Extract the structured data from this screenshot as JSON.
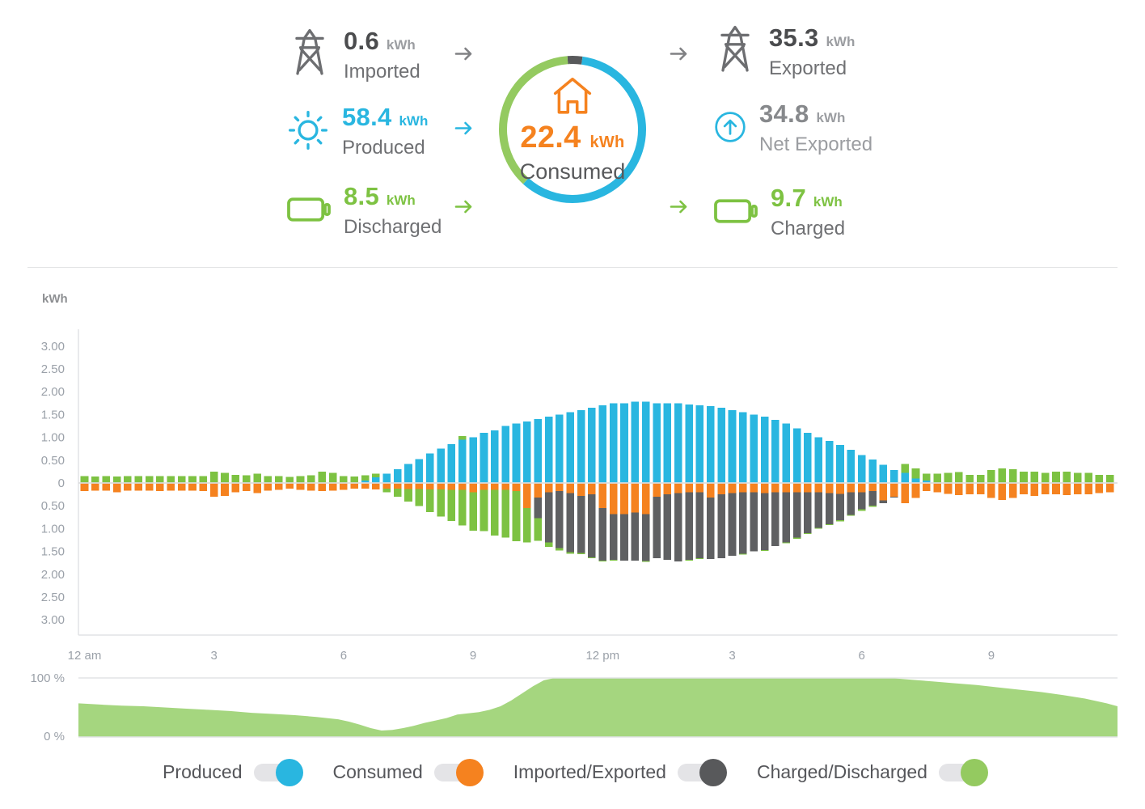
{
  "colors": {
    "produced": "#29b6e0",
    "consumed": "#f5821f",
    "imported_exported": "#5f6062",
    "charged_discharged": "#7dc242",
    "soc_area": "#a5d67f",
    "toggle_track": "#e4e4e7",
    "legend_dark_gray": "#58595b",
    "legend_green": "#94ca60",
    "axis_line": "#e2e3e5",
    "zero_line": "#dcdddf",
    "tick_text": "#9ba1a9",
    "value_dark": "#4b4c4e",
    "label_gray": "#6f7073",
    "muted_gray": "#9b9da1",
    "net_value_gray": "#87898c"
  },
  "summary": {
    "imported": {
      "value": "0.6",
      "unit": "kWh",
      "label": "Imported"
    },
    "produced": {
      "value": "58.4",
      "unit": "kWh",
      "label": "Produced"
    },
    "discharged": {
      "value": "8.5",
      "unit": "kWh",
      "label": "Discharged"
    },
    "consumed": {
      "value": "22.4",
      "unit": "kWh",
      "label": "Consumed"
    },
    "exported": {
      "value": "35.3",
      "unit": "kWh",
      "label": "Exported"
    },
    "net_exported": {
      "value": "34.8",
      "unit": "kWh",
      "label": "Net Exported"
    },
    "charged": {
      "value": "9.7",
      "unit": "kWh",
      "label": "Charged"
    },
    "ring": {
      "start_deg": -4,
      "segments": [
        {
          "name": "from-grid",
          "color": "legend_dark_gray",
          "pct": 3.3
        },
        {
          "name": "from-solar",
          "color": "produced",
          "pct": 59.5
        },
        {
          "name": "from-battery",
          "color": "legend_green",
          "pct": 37.2
        }
      ]
    }
  },
  "chart_data": [
    {
      "type": "bar",
      "title": "Energy by quarter hour",
      "ylabel": "kWh",
      "interval_minutes": 15,
      "start_hour": 0,
      "ylim": [
        -3.5,
        3.5
      ],
      "grid": false,
      "y_ticks": [
        {
          "label": "3.00",
          "value": 3.0
        },
        {
          "label": "2.50",
          "value": 2.5
        },
        {
          "label": "2.00",
          "value": 2.0
        },
        {
          "label": "1.50",
          "value": 1.5
        },
        {
          "label": "1.00",
          "value": 1.0
        },
        {
          "label": "0.50",
          "value": 0.5
        },
        {
          "label": "0",
          "value": 0.0
        },
        {
          "label": "0.50",
          "value": -0.5
        },
        {
          "label": "1.00",
          "value": -1.0
        },
        {
          "label": "1.50",
          "value": -1.5
        },
        {
          "label": "2.00",
          "value": -2.0
        },
        {
          "label": "2.50",
          "value": -2.5
        },
        {
          "label": "3.00",
          "value": -3.0
        }
      ],
      "x_ticks": [
        {
          "label": "12 am",
          "hour": 0
        },
        {
          "label": "3",
          "hour": 3
        },
        {
          "label": "6",
          "hour": 6
        },
        {
          "label": "9",
          "hour": 9
        },
        {
          "label": "12 pm",
          "hour": 12
        },
        {
          "label": "3",
          "hour": 15
        },
        {
          "label": "6",
          "hour": 18
        },
        {
          "label": "9",
          "hour": 21
        }
      ],
      "series": {
        "produced": {
          "sign": 1,
          "color": "produced",
          "values": [
            0,
            0,
            0,
            0,
            0,
            0,
            0,
            0,
            0,
            0,
            0,
            0,
            0,
            0,
            0,
            0,
            0,
            0,
            0,
            0,
            0,
            0,
            0,
            0,
            0,
            0,
            0.05,
            0.12,
            0.2,
            0.3,
            0.42,
            0.52,
            0.65,
            0.75,
            0.85,
            0.95,
            1.0,
            1.1,
            1.15,
            1.25,
            1.3,
            1.35,
            1.4,
            1.45,
            1.5,
            1.55,
            1.6,
            1.65,
            1.7,
            1.75,
            1.75,
            1.78,
            1.78,
            1.75,
            1.75,
            1.75,
            1.72,
            1.7,
            1.68,
            1.65,
            1.6,
            1.55,
            1.5,
            1.45,
            1.38,
            1.3,
            1.2,
            1.1,
            1.0,
            0.92,
            0.83,
            0.73,
            0.61,
            0.51,
            0.4,
            0.28,
            0.22,
            0.1,
            0.05,
            0,
            0,
            0,
            0,
            0,
            0,
            0,
            0,
            0,
            0,
            0,
            0,
            0,
            0,
            0,
            0,
            0
          ]
        },
        "discharged": {
          "sign": 1,
          "color": "charged_discharged",
          "values": [
            0.15,
            0.14,
            0.15,
            0.14,
            0.15,
            0.15,
            0.15,
            0.15,
            0.15,
            0.15,
            0.15,
            0.15,
            0.25,
            0.22,
            0.18,
            0.17,
            0.2,
            0.15,
            0.15,
            0.13,
            0.15,
            0.17,
            0.25,
            0.22,
            0.15,
            0.14,
            0.12,
            0.08,
            0,
            0,
            0,
            0,
            0,
            0,
            0,
            0.08,
            0,
            0,
            0,
            0,
            0,
            0,
            0,
            0,
            0,
            0,
            0,
            0,
            0,
            0,
            0,
            0,
            0,
            0,
            0,
            0,
            0,
            0,
            0,
            0,
            0,
            0,
            0,
            0,
            0,
            0,
            0,
            0,
            0,
            0,
            0,
            0,
            0,
            0,
            0,
            0,
            0.2,
            0.22,
            0.15,
            0.2,
            0.22,
            0.24,
            0.18,
            0.18,
            0.28,
            0.32,
            0.3,
            0.25,
            0.25,
            0.22,
            0.25,
            0.25,
            0.22,
            0.22,
            0.18,
            0.18
          ]
        },
        "consumed": {
          "sign": -1,
          "color": "consumed",
          "values": [
            0.18,
            0.17,
            0.17,
            0.2,
            0.17,
            0.17,
            0.17,
            0.18,
            0.17,
            0.17,
            0.17,
            0.18,
            0.3,
            0.28,
            0.2,
            0.18,
            0.22,
            0.17,
            0.15,
            0.12,
            0.15,
            0.17,
            0.18,
            0.17,
            0.15,
            0.12,
            0.12,
            0.14,
            0.12,
            0.12,
            0.13,
            0.13,
            0.14,
            0.14,
            0.15,
            0.15,
            0.2,
            0.15,
            0.15,
            0.15,
            0.18,
            0.55,
            0.32,
            0.2,
            0.18,
            0.22,
            0.28,
            0.25,
            0.55,
            0.68,
            0.68,
            0.65,
            0.68,
            0.3,
            0.25,
            0.22,
            0.2,
            0.2,
            0.32,
            0.25,
            0.22,
            0.2,
            0.2,
            0.22,
            0.2,
            0.2,
            0.2,
            0.2,
            0.2,
            0.22,
            0.24,
            0.2,
            0.2,
            0.18,
            0.38,
            0.3,
            0.44,
            0.33,
            0.18,
            0.2,
            0.24,
            0.27,
            0.25,
            0.25,
            0.33,
            0.37,
            0.33,
            0.25,
            0.28,
            0.25,
            0.25,
            0.27,
            0.25,
            0.25,
            0.22,
            0.2
          ]
        },
        "exported": {
          "sign": -1,
          "color": "imported_exported",
          "values": [
            0,
            0,
            0,
            0,
            0,
            0,
            0,
            0,
            0,
            0,
            0,
            0,
            0,
            0,
            0,
            0,
            0,
            0,
            0,
            0,
            0,
            0,
            0,
            0,
            0,
            0,
            0,
            0,
            0,
            0,
            0,
            0,
            0,
            0,
            0,
            0,
            0,
            0,
            0,
            0,
            0,
            0,
            0.45,
            1.1,
            1.25,
            1.3,
            1.25,
            1.38,
            1.15,
            1.0,
            1.02,
            1.05,
            1.03,
            1.35,
            1.43,
            1.5,
            1.48,
            1.45,
            1.35,
            1.4,
            1.38,
            1.35,
            1.3,
            1.25,
            1.18,
            1.1,
            1.0,
            0.9,
            0.78,
            0.68,
            0.58,
            0.5,
            0.38,
            0.32,
            0.06,
            0.02,
            0,
            0,
            0,
            0,
            0,
            0,
            0,
            0,
            0,
            0,
            0,
            0,
            0,
            0,
            0,
            0,
            0,
            0,
            0,
            0
          ]
        },
        "charged": {
          "sign": -1,
          "color": "charged_discharged",
          "values": [
            0,
            0,
            0,
            0,
            0,
            0,
            0,
            0,
            0,
            0,
            0,
            0,
            0,
            0,
            0,
            0,
            0,
            0,
            0,
            0,
            0,
            0,
            0,
            0,
            0,
            0,
            0,
            0,
            0.08,
            0.18,
            0.28,
            0.38,
            0.5,
            0.6,
            0.68,
            0.78,
            0.85,
            0.9,
            1.0,
            1.05,
            1.1,
            0.75,
            0.5,
            0.1,
            0.05,
            0.03,
            0.03,
            0.02,
            0.02,
            0.02,
            0,
            0,
            0.02,
            0,
            0,
            0,
            0.02,
            0.02,
            0,
            0,
            0,
            0.02,
            0,
            0.02,
            0,
            0.02,
            0.02,
            0.02,
            0.02,
            0.02,
            0.02,
            0.02,
            0.03,
            0.02,
            0,
            0,
            0,
            0,
            0,
            0,
            0,
            0,
            0,
            0,
            0,
            0,
            0,
            0,
            0,
            0,
            0,
            0,
            0,
            0,
            0,
            0
          ]
        }
      }
    },
    {
      "type": "area",
      "title": "Battery state of charge",
      "y_labels": [
        "100 %",
        "0 %"
      ],
      "ylim": [
        0,
        100
      ],
      "unit": "%",
      "points": [
        [
          0,
          57
        ],
        [
          0.5,
          55
        ],
        [
          1,
          53
        ],
        [
          1.5,
          52
        ],
        [
          2,
          50
        ],
        [
          2.5,
          48
        ],
        [
          3,
          46
        ],
        [
          3.5,
          44
        ],
        [
          4,
          41
        ],
        [
          4.5,
          39
        ],
        [
          5,
          37
        ],
        [
          5.5,
          34
        ],
        [
          6,
          30
        ],
        [
          6.25,
          26
        ],
        [
          6.5,
          21
        ],
        [
          6.75,
          15
        ],
        [
          7,
          11
        ],
        [
          7.25,
          12
        ],
        [
          7.5,
          15
        ],
        [
          7.75,
          19
        ],
        [
          8,
          24
        ],
        [
          8.25,
          28
        ],
        [
          8.5,
          32
        ],
        [
          8.75,
          38
        ],
        [
          9,
          40
        ],
        [
          9.25,
          42
        ],
        [
          9.5,
          46
        ],
        [
          9.75,
          52
        ],
        [
          10,
          62
        ],
        [
          10.25,
          74
        ],
        [
          10.5,
          86
        ],
        [
          10.75,
          96
        ],
        [
          11,
          100
        ],
        [
          18.75,
          100
        ],
        [
          19.25,
          97
        ],
        [
          19.75,
          94
        ],
        [
          20.25,
          91
        ],
        [
          20.75,
          88
        ],
        [
          21.25,
          84
        ],
        [
          21.75,
          80
        ],
        [
          22.25,
          76
        ],
        [
          22.75,
          71
        ],
        [
          23.25,
          65
        ],
        [
          23.75,
          57
        ],
        [
          24,
          52
        ]
      ]
    }
  ],
  "legend": {
    "items": [
      {
        "label": "Produced",
        "color": "produced"
      },
      {
        "label": "Consumed",
        "color": "consumed"
      },
      {
        "label": "Imported/Exported",
        "color": "legend_dark_gray"
      },
      {
        "label": "Charged/Discharged",
        "color": "legend_green"
      }
    ]
  }
}
